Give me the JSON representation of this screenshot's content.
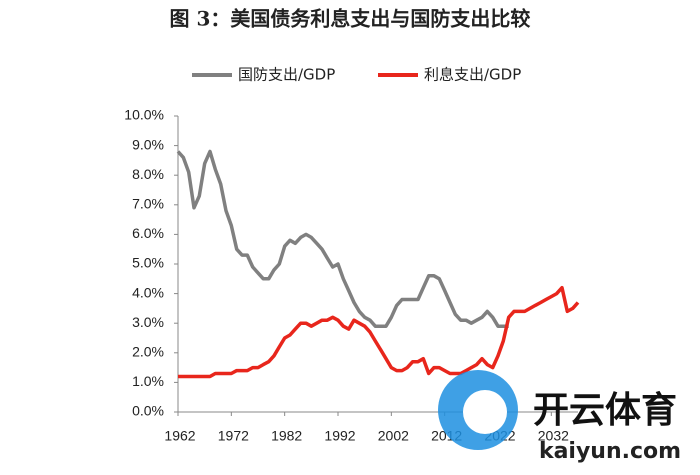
{
  "chart_data": {
    "type": "line",
    "title": "图 3：美国债务利息支出与国防支出比较",
    "x": [
      1962,
      1963,
      1964,
      1965,
      1966,
      1967,
      1968,
      1969,
      1970,
      1971,
      1972,
      1973,
      1974,
      1975,
      1976,
      1977,
      1978,
      1979,
      1980,
      1981,
      1982,
      1983,
      1984,
      1985,
      1986,
      1987,
      1988,
      1989,
      1990,
      1991,
      1992,
      1993,
      1994,
      1995,
      1996,
      1997,
      1998,
      1999,
      2000,
      2001,
      2002,
      2003,
      2004,
      2005,
      2006,
      2007,
      2008,
      2009,
      2010,
      2011,
      2012,
      2013,
      2014,
      2015,
      2016,
      2017,
      2018,
      2019,
      2020,
      2021,
      2022,
      2023,
      2024,
      2025,
      2026,
      2027,
      2028,
      2029,
      2030,
      2031,
      2032,
      2033,
      2034,
      2035,
      2036,
      2037
    ],
    "series": [
      {
        "name": "国防支出/GDP",
        "color": "#808080",
        "values": [
          8.8,
          8.6,
          8.1,
          6.9,
          7.3,
          8.4,
          8.8,
          8.2,
          7.7,
          6.8,
          6.3,
          5.5,
          5.3,
          5.3,
          4.9,
          4.7,
          4.5,
          4.5,
          4.8,
          5.0,
          5.6,
          5.8,
          5.7,
          5.9,
          6.0,
          5.9,
          5.7,
          5.5,
          5.2,
          4.9,
          5.0,
          4.5,
          4.1,
          3.7,
          3.4,
          3.2,
          3.1,
          2.9,
          2.9,
          2.9,
          3.2,
          3.6,
          3.8,
          3.8,
          3.8,
          3.8,
          4.2,
          4.6,
          4.6,
          4.5,
          4.1,
          3.7,
          3.3,
          3.1,
          3.1,
          3.0,
          3.1,
          3.2,
          3.4,
          3.2,
          2.9,
          2.9,
          2.9,
          null,
          null,
          null,
          null,
          null,
          null,
          null,
          null,
          null,
          null,
          null,
          null,
          null
        ]
      },
      {
        "name": "利息支出/GDP",
        "color": "#e8261c",
        "values": [
          1.2,
          1.2,
          1.2,
          1.2,
          1.2,
          1.2,
          1.2,
          1.3,
          1.3,
          1.3,
          1.3,
          1.4,
          1.4,
          1.4,
          1.5,
          1.5,
          1.6,
          1.7,
          1.9,
          2.2,
          2.5,
          2.6,
          2.8,
          3.0,
          3.0,
          2.9,
          3.0,
          3.1,
          3.1,
          3.2,
          3.1,
          2.9,
          2.8,
          3.1,
          3.0,
          2.9,
          2.7,
          2.4,
          2.1,
          1.8,
          1.5,
          1.4,
          1.4,
          1.5,
          1.7,
          1.7,
          1.8,
          1.3,
          1.5,
          1.5,
          1.4,
          1.3,
          1.3,
          1.3,
          1.4,
          1.5,
          1.6,
          1.8,
          1.6,
          1.5,
          1.9,
          2.4,
          3.2,
          3.4,
          3.4,
          3.4,
          3.5,
          3.6,
          3.7,
          3.8,
          3.9,
          4.0,
          4.2,
          3.4,
          3.5,
          3.7
        ]
      }
    ],
    "xlim": [
      1962,
      2037
    ],
    "xticks": [
      1962,
      1972,
      1982,
      1992,
      2002,
      2012,
      2022,
      2032
    ],
    "ylim": [
      0,
      10
    ],
    "yticks": [
      {
        "value": 0,
        "label": "0.0%"
      },
      {
        "value": 1,
        "label": "1.0%"
      },
      {
        "value": 2,
        "label": "2.0%"
      },
      {
        "value": 3,
        "label": "3.0%"
      },
      {
        "value": 4,
        "label": "4.0%"
      },
      {
        "value": 5,
        "label": "5.0%"
      },
      {
        "value": 6,
        "label": "6.0%"
      },
      {
        "value": 7,
        "label": "7.0%"
      },
      {
        "value": 8,
        "label": "8.0%"
      },
      {
        "value": 9,
        "label": "9.0%"
      },
      {
        "value": 10,
        "label": "10.0%"
      }
    ],
    "legend": "top",
    "grid": false
  },
  "watermark": {
    "brand": "开云体育",
    "site": "kaiyun.com"
  }
}
